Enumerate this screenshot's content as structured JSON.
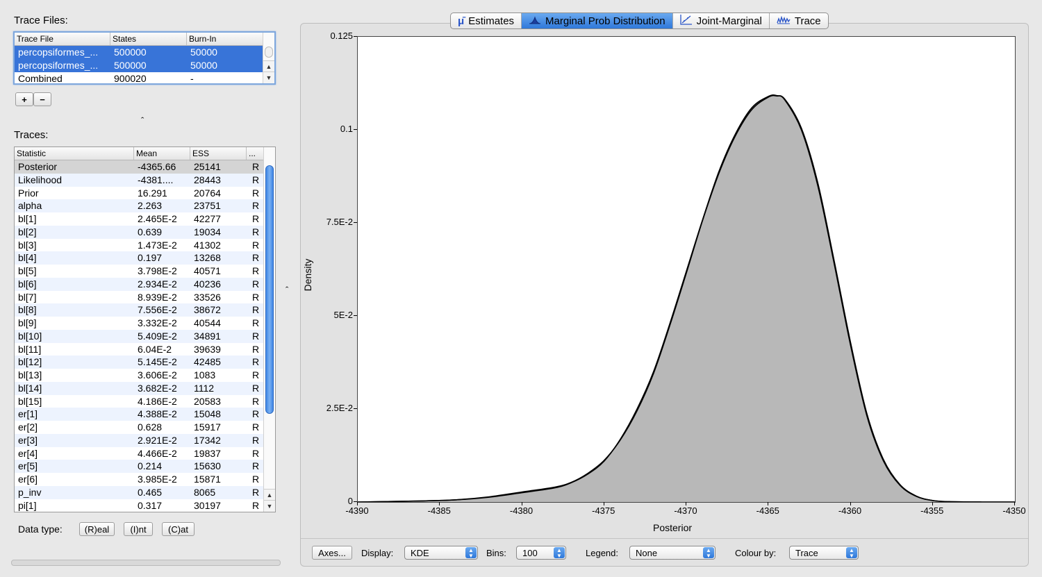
{
  "trace_files": {
    "label": "Trace Files:",
    "columns": [
      "Trace File",
      "States",
      "Burn-In"
    ],
    "rows": [
      {
        "file": "percopsiformes_...",
        "states": "500000",
        "burnin": "50000"
      },
      {
        "file": "percopsiformes_...",
        "states": "500000",
        "burnin": "50000"
      },
      {
        "file": "Combined",
        "states": "900020",
        "burnin": "-"
      }
    ],
    "add_label": "+",
    "remove_label": "−",
    "collapse_glyph": "ˆ"
  },
  "traces": {
    "label": "Traces:",
    "columns": [
      "Statistic",
      "Mean",
      "ESS",
      "..."
    ],
    "rows": [
      {
        "stat": "Posterior",
        "mean": "-4365.66",
        "ess": "25141",
        "type": "R"
      },
      {
        "stat": "Likelihood",
        "mean": "-4381....",
        "ess": "28443",
        "type": "R"
      },
      {
        "stat": "Prior",
        "mean": "16.291",
        "ess": "20764",
        "type": "R"
      },
      {
        "stat": "alpha",
        "mean": "2.263",
        "ess": "23751",
        "type": "R"
      },
      {
        "stat": "bl[1]",
        "mean": "2.465E-2",
        "ess": "42277",
        "type": "R"
      },
      {
        "stat": "bl[2]",
        "mean": "0.639",
        "ess": "19034",
        "type": "R"
      },
      {
        "stat": "bl[3]",
        "mean": "1.473E-2",
        "ess": "41302",
        "type": "R"
      },
      {
        "stat": "bl[4]",
        "mean": "0.197",
        "ess": "13268",
        "type": "R"
      },
      {
        "stat": "bl[5]",
        "mean": "3.798E-2",
        "ess": "40571",
        "type": "R"
      },
      {
        "stat": "bl[6]",
        "mean": "2.934E-2",
        "ess": "40236",
        "type": "R"
      },
      {
        "stat": "bl[7]",
        "mean": "8.939E-2",
        "ess": "33526",
        "type": "R"
      },
      {
        "stat": "bl[8]",
        "mean": "7.556E-2",
        "ess": "38672",
        "type": "R"
      },
      {
        "stat": "bl[9]",
        "mean": "3.332E-2",
        "ess": "40544",
        "type": "R"
      },
      {
        "stat": "bl[10]",
        "mean": "5.409E-2",
        "ess": "34891",
        "type": "R"
      },
      {
        "stat": "bl[11]",
        "mean": "6.04E-2",
        "ess": "39639",
        "type": "R"
      },
      {
        "stat": "bl[12]",
        "mean": "5.145E-2",
        "ess": "42485",
        "type": "R"
      },
      {
        "stat": "bl[13]",
        "mean": "3.606E-2",
        "ess": "1083",
        "type": "R"
      },
      {
        "stat": "bl[14]",
        "mean": "3.682E-2",
        "ess": "1112",
        "type": "R"
      },
      {
        "stat": "bl[15]",
        "mean": "4.186E-2",
        "ess": "20583",
        "type": "R"
      },
      {
        "stat": "er[1]",
        "mean": "4.388E-2",
        "ess": "15048",
        "type": "R"
      },
      {
        "stat": "er[2]",
        "mean": "0.628",
        "ess": "15917",
        "type": "R"
      },
      {
        "stat": "er[3]",
        "mean": "2.921E-2",
        "ess": "17342",
        "type": "R"
      },
      {
        "stat": "er[4]",
        "mean": "4.466E-2",
        "ess": "19837",
        "type": "R"
      },
      {
        "stat": "er[5]",
        "mean": "0.214",
        "ess": "15630",
        "type": "R"
      },
      {
        "stat": "er[6]",
        "mean": "3.985E-2",
        "ess": "15871",
        "type": "R"
      },
      {
        "stat": "p_inv",
        "mean": "0.465",
        "ess": "8065",
        "type": "R"
      },
      {
        "stat": "pi[1]",
        "mean": "0.317",
        "ess": "30197",
        "type": "R"
      }
    ]
  },
  "data_type": {
    "label": "Data type:",
    "buttons": [
      "(R)eal",
      "(I)nt",
      "(C)at"
    ]
  },
  "divider_glyph": "ˆ",
  "tabs": [
    {
      "label": "Estimates",
      "icon": "mu-icon"
    },
    {
      "label": "Marginal Prob Distribution",
      "icon": "distribution-icon"
    },
    {
      "label": "Joint-Marginal",
      "icon": "joint-icon"
    },
    {
      "label": "Trace",
      "icon": "trace-icon"
    }
  ],
  "chart_data": {
    "type": "area",
    "xlabel": "Posterior",
    "ylabel": "Density",
    "xlim": [
      -4390,
      -4350
    ],
    "ylim": [
      0,
      0.125
    ],
    "x_ticks": [
      "-4390",
      "-4385",
      "-4380",
      "-4375",
      "-4370",
      "-4365",
      "-4360",
      "-4355",
      "-4350"
    ],
    "y_ticks": [
      "0",
      "2.5E-2",
      "5E-2",
      "7.5E-2",
      "0.1",
      "0.125"
    ],
    "series": [
      {
        "x": [
          -4390,
          -4386,
          -4384,
          -4382,
          -4380,
          -4378,
          -4377,
          -4376,
          -4375,
          -4374,
          -4373,
          -4372,
          -4371,
          -4370,
          -4369,
          -4368,
          -4367,
          -4366,
          -4365,
          -4364.5,
          -4364,
          -4363,
          -4362,
          -4361,
          -4360,
          -4359,
          -4358,
          -4357,
          -4356,
          -4355,
          -4354,
          -4352,
          -4350
        ],
        "y": [
          0.0,
          0.0003,
          0.0006,
          0.0013,
          0.0025,
          0.0038,
          0.0052,
          0.0075,
          0.011,
          0.017,
          0.025,
          0.035,
          0.048,
          0.062,
          0.076,
          0.089,
          0.099,
          0.106,
          0.109,
          0.1092,
          0.108,
          0.1,
          0.085,
          0.064,
          0.042,
          0.023,
          0.011,
          0.0045,
          0.0015,
          0.0004,
          0.0001,
          0.0,
          0.0
        ]
      },
      {
        "x": [
          -4390,
          -4386,
          -4384,
          -4382,
          -4380,
          -4378,
          -4377,
          -4376,
          -4375,
          -4374,
          -4373,
          -4372,
          -4371,
          -4370,
          -4369,
          -4368,
          -4367,
          -4366,
          -4365,
          -4364.5,
          -4364,
          -4363,
          -4362,
          -4361,
          -4360,
          -4359,
          -4358,
          -4357,
          -4356,
          -4355,
          -4354,
          -4352,
          -4350
        ],
        "y": [
          0.0,
          0.0003,
          0.0006,
          0.0014,
          0.0027,
          0.004,
          0.0053,
          0.0077,
          0.0112,
          0.0168,
          0.0245,
          0.0345,
          0.0475,
          0.0615,
          0.0758,
          0.0885,
          0.0985,
          0.1055,
          0.1088,
          0.1091,
          0.1082,
          0.1005,
          0.0858,
          0.0648,
          0.0428,
          0.0236,
          0.0114,
          0.0047,
          0.0016,
          0.0004,
          0.0001,
          0.0,
          0.0
        ]
      }
    ]
  },
  "controls": {
    "axes_label": "Axes...",
    "display_label": "Display:",
    "display_value": "KDE",
    "bins_label": "Bins:",
    "bins_value": "100",
    "legend_label": "Legend:",
    "legend_value": "None",
    "colour_label": "Colour by:",
    "colour_value": "Trace"
  }
}
